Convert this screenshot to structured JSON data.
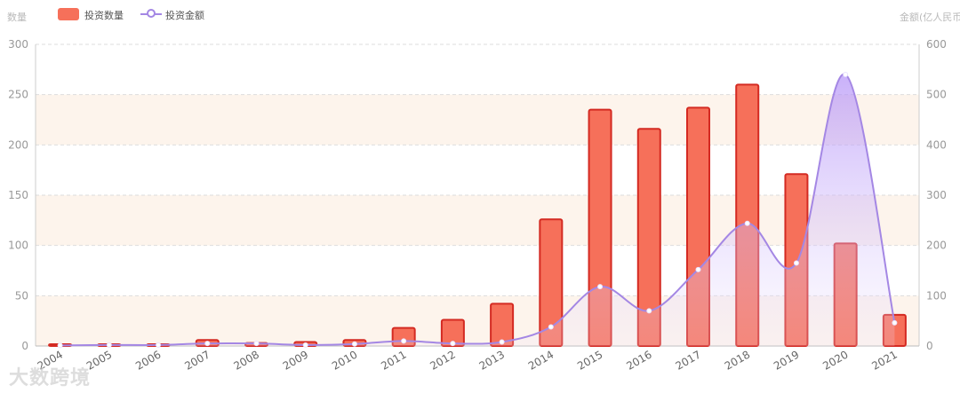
{
  "chart_data": {
    "type": "bar",
    "categories": [
      "2004",
      "2005",
      "2006",
      "2007",
      "2008",
      "2009",
      "2010",
      "2011",
      "2012",
      "2013",
      "2014",
      "2015",
      "2016",
      "2017",
      "2018",
      "2019",
      "2020",
      "2021"
    ],
    "series": [
      {
        "name": "投资数量",
        "type": "bar",
        "axis": "left",
        "color": "#f6705a",
        "values": [
          1,
          1,
          1,
          6,
          3,
          4,
          6,
          18,
          26,
          42,
          126,
          235,
          216,
          237,
          260,
          171,
          102,
          31
        ]
      },
      {
        "name": "投资金额",
        "type": "line",
        "axis": "right",
        "color": "#a487e4",
        "values": [
          1,
          2,
          2,
          5,
          5,
          2,
          4,
          10,
          5,
          8,
          38,
          118,
          70,
          152,
          244,
          165,
          540,
          46
        ]
      }
    ],
    "ylabel_left": "数量",
    "ylabel_right": "金额(亿人民币)",
    "ylim_left": [
      0,
      300
    ],
    "ylim_right": [
      0,
      600
    ],
    "yticks_left": [
      "0",
      "50",
      "100",
      "150",
      "200",
      "250",
      "300"
    ],
    "yticks_right": [
      "0",
      "100",
      "200",
      "300",
      "400",
      "500",
      "600"
    ],
    "legend_position": "top-left",
    "grid": true
  },
  "watermark": "大数跨境"
}
